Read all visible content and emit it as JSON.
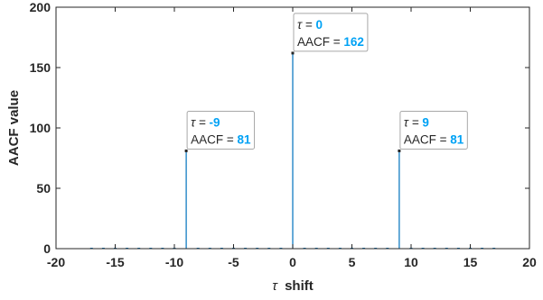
{
  "chart_data": {
    "type": "stem",
    "xlabel_symbol": "τ",
    "xlabel_text": "shift",
    "ylabel": "AACF value",
    "xlim": [
      -20,
      20
    ],
    "ylim": [
      0,
      200
    ],
    "xticks": [
      "-20",
      "-15",
      "-10",
      "-5",
      "0",
      "5",
      "10",
      "15",
      "20"
    ],
    "yticks": [
      "0",
      "50",
      "100",
      "150",
      "200"
    ],
    "x": [
      -17,
      -16,
      -15,
      -14,
      -13,
      -12,
      -11,
      -10,
      -9,
      -8,
      -7,
      -6,
      -5,
      -4,
      -3,
      -2,
      -1,
      0,
      1,
      2,
      3,
      4,
      5,
      6,
      7,
      8,
      9,
      10,
      11,
      12,
      13,
      14,
      15,
      16,
      17
    ],
    "values": [
      0,
      0,
      0,
      0,
      0,
      0,
      0,
      0,
      81,
      0,
      0,
      0,
      0,
      0,
      0,
      0,
      0,
      162,
      0,
      0,
      0,
      0,
      0,
      0,
      0,
      0,
      81,
      0,
      0,
      0,
      0,
      0,
      0,
      0,
      0
    ],
    "series_color": "#0072BD",
    "highlight_color": "#00A2F5",
    "datatips": [
      {
        "tau_label": "τ = ",
        "tau": "-9",
        "aacf_label": "AACF = ",
        "aacf": "81"
      },
      {
        "tau_label": "τ = ",
        "tau": "0",
        "aacf_label": "AACF = ",
        "aacf": "162"
      },
      {
        "tau_label": "τ = ",
        "tau": "9",
        "aacf_label": "AACF = ",
        "aacf": "81"
      }
    ]
  }
}
